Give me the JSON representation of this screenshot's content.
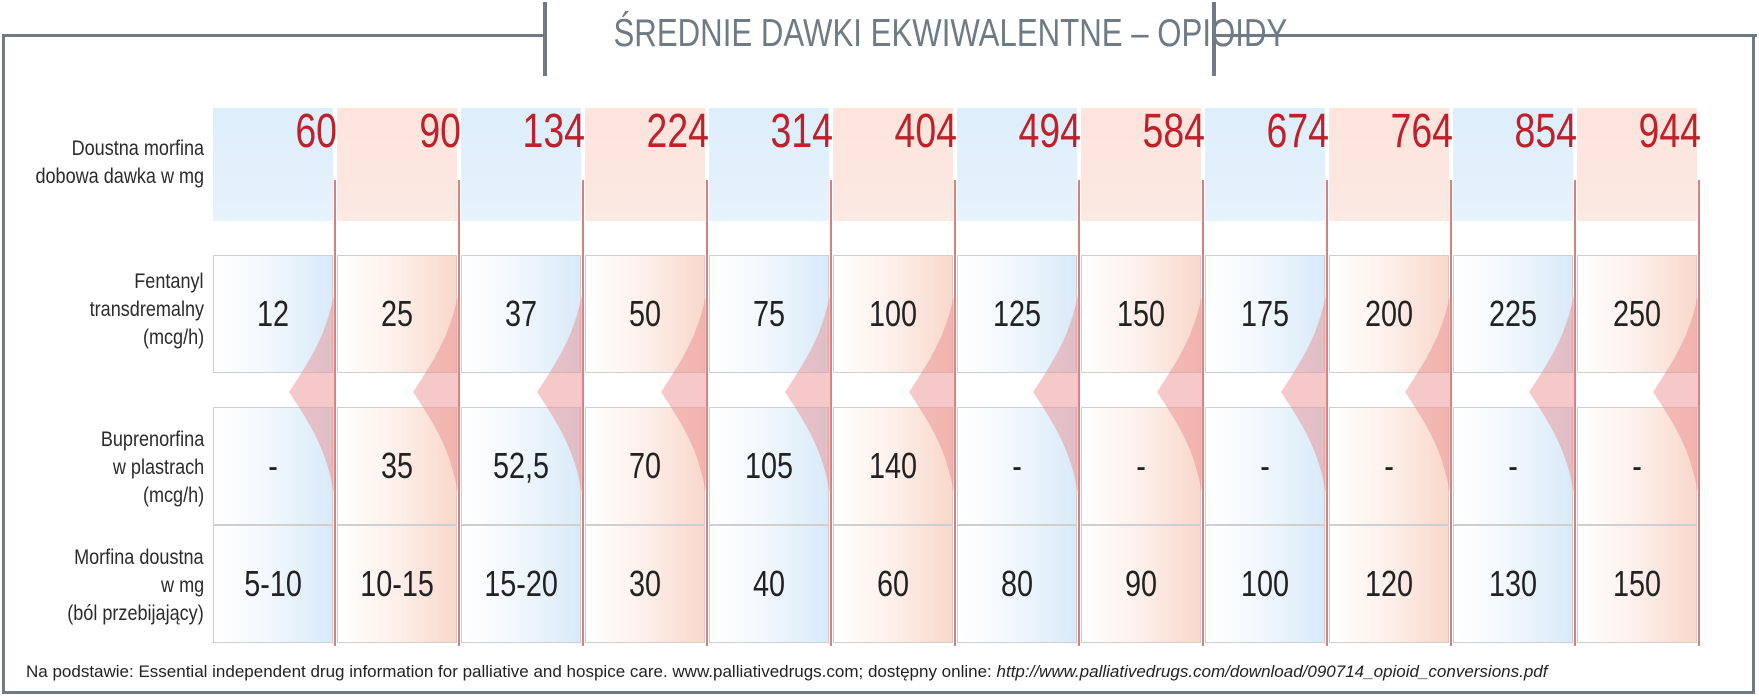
{
  "title": "ŚREDNIE DAWKI EKWIWALENTNE – OPIOIDY",
  "rows": {
    "morphine_daily": {
      "label": [
        "Doustna morfina",
        "dobowa dawka w mg"
      ]
    },
    "fentanyl": {
      "label": [
        "Fentanyl",
        "transdremalny",
        "(mcg/h)"
      ]
    },
    "buprenorphine": {
      "label": [
        "Buprenorfina",
        "w plastrach",
        "(mcg/h)"
      ]
    },
    "morphine_breakthrough": {
      "label": [
        "Morfina doustna",
        "w mg",
        "(ból przebijający)"
      ]
    }
  },
  "morphine_doses": [
    "60",
    "90",
    "134",
    "224",
    "314",
    "404",
    "494",
    "584",
    "674",
    "764",
    "854",
    "944"
  ],
  "fentanyl_values": [
    "12",
    "25",
    "37",
    "50",
    "75",
    "100",
    "125",
    "150",
    "175",
    "200",
    "225",
    "250"
  ],
  "buprenorphine_values": [
    "-",
    "35",
    "52,5",
    "70",
    "105",
    "140",
    "-",
    "-",
    "-",
    "-",
    "-",
    "-"
  ],
  "breakthrough_values": [
    "5-10",
    "10-15",
    "15-20",
    "30",
    "40",
    "60",
    "80",
    "90",
    "100",
    "120",
    "130",
    "150"
  ],
  "footnote": {
    "text": "Na podstawie: Essential independent drug information for palliative and hospice care. www.palliativedrugs.com; dostępny online: ",
    "link": "http://www.palliativedrugs.com/download/090714_opioid_conversions.pdf"
  },
  "colors": {
    "dose_red": "#c0202a",
    "frame_gray": "#6f7b84",
    "blue_tint": "#d9eaf8",
    "pink_tint": "#f9d8cc"
  }
}
